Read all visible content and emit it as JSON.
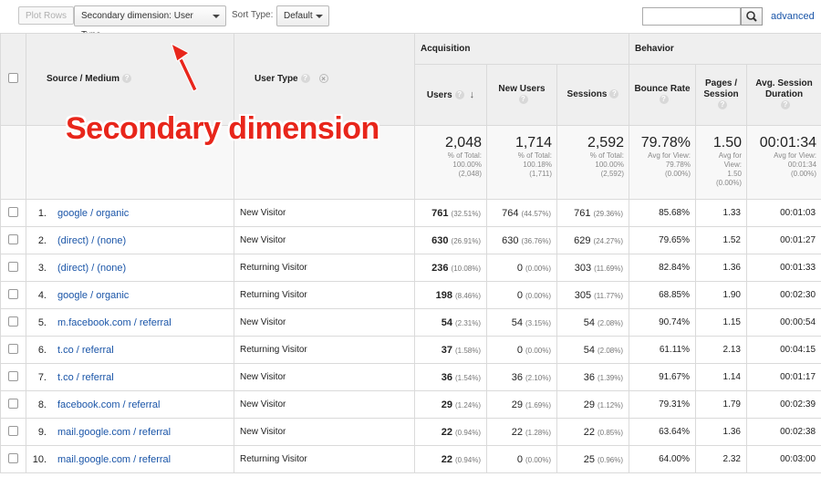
{
  "toolbar": {
    "plot_rows": "Plot Rows",
    "secondary_dimension": "Secondary dimension: User Type",
    "sort_type_label": "Sort Type:",
    "sort_type_value": "Default",
    "search_value": "",
    "advanced": "advanced",
    "icons": {
      "search": "search-icon"
    }
  },
  "header": {
    "source_medium": "Source / Medium",
    "user_type": "User Type",
    "acquisition": "Acquisition",
    "behavior": "Behavior",
    "help": "?",
    "remove": "×",
    "sort_arrow": "↓",
    "columns": {
      "users": "Users",
      "new_users": "New Users",
      "sessions": "Sessions",
      "bounce_rate": "Bounce Rate",
      "pages_session": "Pages / Session",
      "avg_duration": "Avg. Session Duration"
    }
  },
  "totals": {
    "users": {
      "value": "2,048",
      "sub1": "% of Total:",
      "sub2": "100.00%",
      "sub3": "(2,048)"
    },
    "new_users": {
      "value": "1,714",
      "sub1": "% of Total:",
      "sub2": "100.18%",
      "sub3": "(1,711)"
    },
    "sessions": {
      "value": "2,592",
      "sub1": "% of Total:",
      "sub2": "100.00%",
      "sub3": "(2,592)"
    },
    "bounce_rate": {
      "value": "79.78%",
      "sub1": "Avg for View:",
      "sub2": "79.78%",
      "sub3": "(0.00%)"
    },
    "pages_session": {
      "value": "1.50",
      "sub1": "Avg for",
      "sub2": "View:",
      "sub3": "1.50",
      "sub4": "(0.00%)"
    },
    "avg_duration": {
      "value": "00:01:34",
      "sub1": "Avg for View:",
      "sub2": "00:01:34",
      "sub3": "(0.00%)"
    }
  },
  "rows": [
    {
      "idx": "1.",
      "source": "google / organic",
      "user_type": "New Visitor",
      "users": "761",
      "users_pct": "(32.51%)",
      "new_users": "764",
      "new_users_pct": "(44.57%)",
      "sessions": "761",
      "sessions_pct": "(29.36%)",
      "bounce": "85.68%",
      "pages": "1.33",
      "duration": "00:01:03"
    },
    {
      "idx": "2.",
      "source": "(direct) / (none)",
      "user_type": "New Visitor",
      "users": "630",
      "users_pct": "(26.91%)",
      "new_users": "630",
      "new_users_pct": "(36.76%)",
      "sessions": "629",
      "sessions_pct": "(24.27%)",
      "bounce": "79.65%",
      "pages": "1.52",
      "duration": "00:01:27"
    },
    {
      "idx": "3.",
      "source": "(direct) / (none)",
      "user_type": "Returning Visitor",
      "users": "236",
      "users_pct": "(10.08%)",
      "new_users": "0",
      "new_users_pct": "(0.00%)",
      "sessions": "303",
      "sessions_pct": "(11.69%)",
      "bounce": "82.84%",
      "pages": "1.36",
      "duration": "00:01:33"
    },
    {
      "idx": "4.",
      "source": "google / organic",
      "user_type": "Returning Visitor",
      "users": "198",
      "users_pct": "(8.46%)",
      "new_users": "0",
      "new_users_pct": "(0.00%)",
      "sessions": "305",
      "sessions_pct": "(11.77%)",
      "bounce": "68.85%",
      "pages": "1.90",
      "duration": "00:02:30"
    },
    {
      "idx": "5.",
      "source": "m.facebook.com / referral",
      "user_type": "New Visitor",
      "users": "54",
      "users_pct": "(2.31%)",
      "new_users": "54",
      "new_users_pct": "(3.15%)",
      "sessions": "54",
      "sessions_pct": "(2.08%)",
      "bounce": "90.74%",
      "pages": "1.15",
      "duration": "00:00:54"
    },
    {
      "idx": "6.",
      "source": "t.co / referral",
      "user_type": "Returning Visitor",
      "users": "37",
      "users_pct": "(1.58%)",
      "new_users": "0",
      "new_users_pct": "(0.00%)",
      "sessions": "54",
      "sessions_pct": "(2.08%)",
      "bounce": "61.11%",
      "pages": "2.13",
      "duration": "00:04:15"
    },
    {
      "idx": "7.",
      "source": "t.co / referral",
      "user_type": "New Visitor",
      "users": "36",
      "users_pct": "(1.54%)",
      "new_users": "36",
      "new_users_pct": "(2.10%)",
      "sessions": "36",
      "sessions_pct": "(1.39%)",
      "bounce": "91.67%",
      "pages": "1.14",
      "duration": "00:01:17"
    },
    {
      "idx": "8.",
      "source": "facebook.com / referral",
      "user_type": "New Visitor",
      "users": "29",
      "users_pct": "(1.24%)",
      "new_users": "29",
      "new_users_pct": "(1.69%)",
      "sessions": "29",
      "sessions_pct": "(1.12%)",
      "bounce": "79.31%",
      "pages": "1.79",
      "duration": "00:02:39"
    },
    {
      "idx": "9.",
      "source": "mail.google.com / referral",
      "user_type": "New Visitor",
      "users": "22",
      "users_pct": "(0.94%)",
      "new_users": "22",
      "new_users_pct": "(1.28%)",
      "sessions": "22",
      "sessions_pct": "(0.85%)",
      "bounce": "63.64%",
      "pages": "1.36",
      "duration": "00:02:38"
    },
    {
      "idx": "10.",
      "source": "mail.google.com / referral",
      "user_type": "Returning Visitor",
      "users": "22",
      "users_pct": "(0.94%)",
      "new_users": "0",
      "new_users_pct": "(0.00%)",
      "sessions": "25",
      "sessions_pct": "(0.96%)",
      "bounce": "64.00%",
      "pages": "2.32",
      "duration": "00:03:00"
    }
  ],
  "annotation": {
    "text": "Secondary dimension",
    "color": "#e8261b"
  }
}
